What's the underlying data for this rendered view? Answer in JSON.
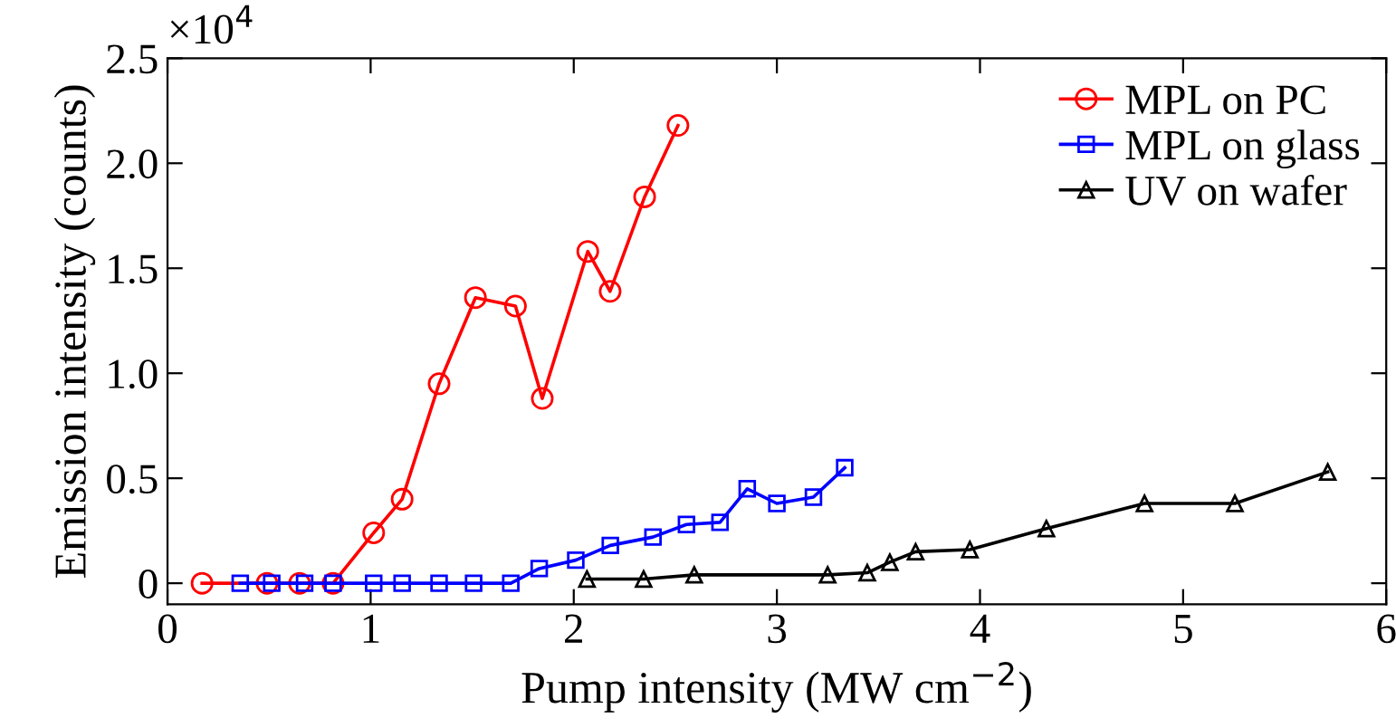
{
  "chart_data": {
    "type": "line",
    "xlabel": "Pump intensity (MW cm$^{−2}$)",
    "ylabel": "Emission intensity (counts)",
    "annotations": [
      "×10$^{4}$"
    ],
    "xlim": [
      0,
      6
    ],
    "xticks": [
      0,
      1,
      2,
      3,
      4,
      5,
      6
    ],
    "ylim": [
      -0.1,
      2.5
    ],
    "yticks": [
      0,
      {
        "value": 0.5,
        "label": "0.5"
      },
      {
        "value": 1,
        "label": "1.0"
      },
      {
        "value": 1.5,
        "label": "1.5"
      },
      {
        "value": 2,
        "label": "2.0"
      },
      {
        "value": 2.5,
        "label": "2.5"
      }
    ],
    "grid": false,
    "legend": "top right",
    "line_style": "solid",
    "series": [
      {
        "name": "MPL on PC",
        "color": "#ff0000",
        "marker": "circle",
        "x": [
          0.17,
          0.49,
          0.65,
          0.815,
          1.015,
          1.155,
          1.337,
          1.516,
          1.713,
          1.845,
          2.069,
          2.179,
          2.349,
          2.513
        ],
        "values": [
          0,
          0,
          0,
          0,
          0.24,
          0.4,
          0.95,
          1.36,
          1.32,
          0.88,
          1.58,
          1.39,
          1.84,
          2.18
        ]
      },
      {
        "name": "MPL on glass",
        "color": "#0000ff",
        "marker": "square",
        "x": [
          0.358,
          0.513,
          0.675,
          0.815,
          1.015,
          1.155,
          1.337,
          1.507,
          1.69,
          1.83,
          2.01,
          2.18,
          2.39,
          2.555,
          2.72,
          2.854,
          3.0,
          3.18,
          3.334
        ],
        "values": [
          0,
          0,
          0,
          0,
          0,
          0,
          0,
          0,
          0,
          0.07,
          0.11,
          0.18,
          0.22,
          0.28,
          0.29,
          0.45,
          0.38,
          0.41,
          0.55
        ]
      },
      {
        "name": "UV on wafer",
        "color": "#000000",
        "marker": "triangle",
        "x": [
          2.065,
          2.344,
          2.593,
          3.25,
          3.445,
          3.556,
          3.683,
          3.95,
          4.327,
          4.81,
          5.255,
          5.712
        ],
        "values": [
          0.02,
          0.02,
          0.04,
          0.04,
          0.05,
          0.1,
          0.15,
          0.16,
          0.26,
          0.38,
          0.38,
          0.53
        ]
      }
    ]
  }
}
